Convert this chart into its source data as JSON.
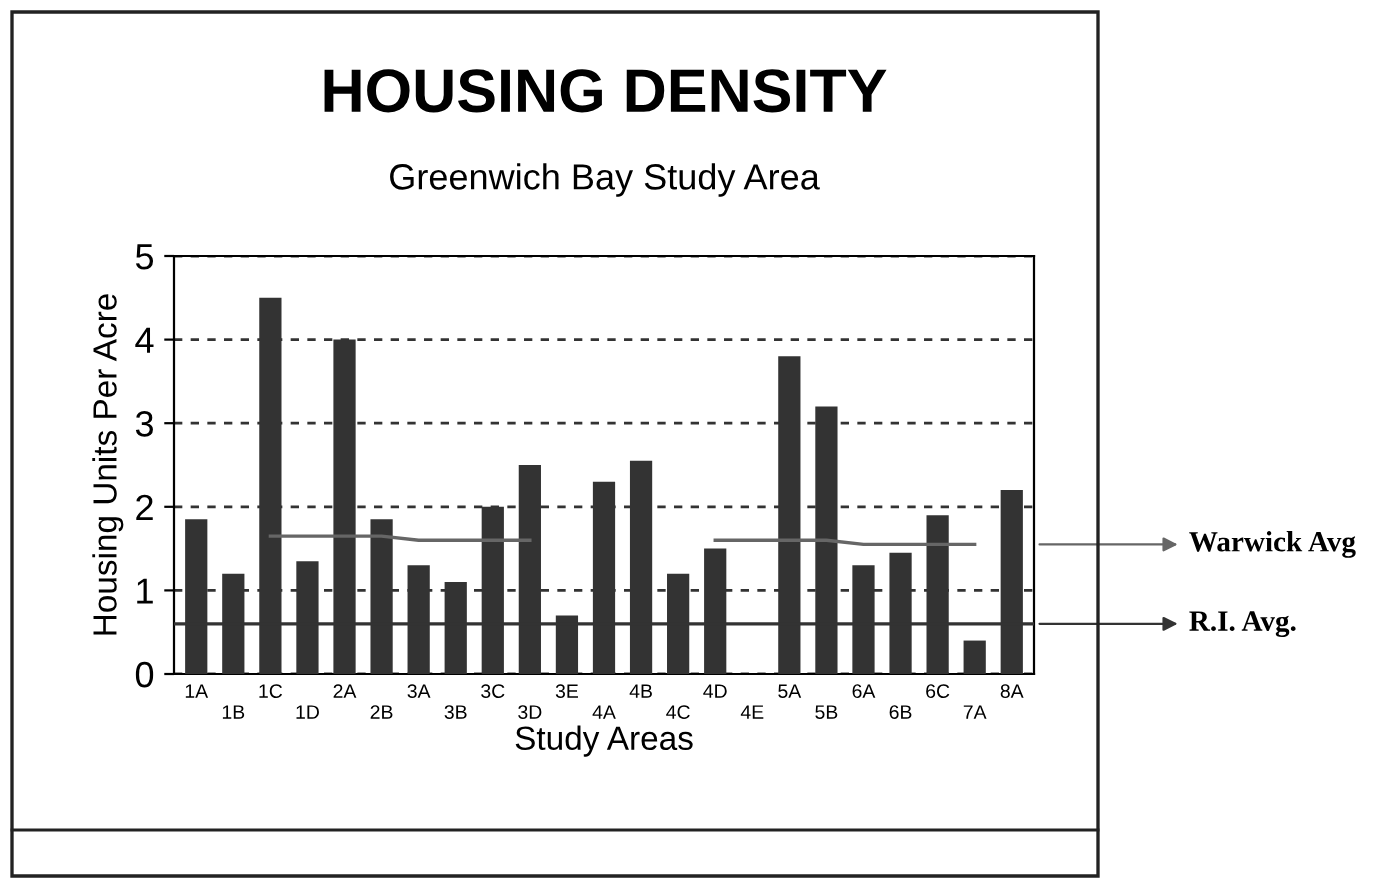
{
  "chart_data": {
    "type": "bar",
    "title": "HOUSING DENSITY",
    "subtitle": "Greenwich Bay Study Area",
    "xlabel": "Study Areas",
    "ylabel": "Housing Units Per Acre",
    "categories": [
      "1A",
      "1B",
      "1C",
      "1D",
      "2A",
      "2B",
      "3A",
      "3B",
      "3C",
      "3D",
      "3E",
      "4A",
      "4B",
      "4C",
      "4D",
      "4E",
      "5A",
      "5B",
      "6A",
      "6B",
      "6C",
      "7A",
      "8A"
    ],
    "series": [
      {
        "color": "#333333",
        "values": [
          1.85,
          1.2,
          4.5,
          1.35,
          4.0,
          1.85,
          1.3,
          1.1,
          2.0,
          2.5,
          0.7,
          2.3,
          2.55,
          1.2,
          1.5,
          null,
          3.8,
          3.2,
          1.3,
          1.45,
          1.9,
          0.4,
          2.2
        ]
      },
      {
        "type": "line",
        "name": "Warwick Avg",
        "color": "#666666",
        "values": [
          null,
          null,
          1.65,
          1.65,
          1.65,
          1.65,
          1.6,
          1.6,
          1.6,
          1.6,
          null,
          null,
          null,
          null,
          1.6,
          1.6,
          1.6,
          1.6,
          1.55,
          1.55,
          1.55,
          1.55,
          null
        ]
      }
    ],
    "ref_lines": [
      {
        "axis": "y",
        "value": 0.6,
        "label": "R.I. Avg.",
        "color": "#333333"
      }
    ],
    "ylim": [
      0,
      5
    ],
    "yticks": [
      0,
      1,
      2,
      3,
      4,
      5
    ],
    "grid": "y",
    "legend": "right",
    "marker": "none"
  }
}
